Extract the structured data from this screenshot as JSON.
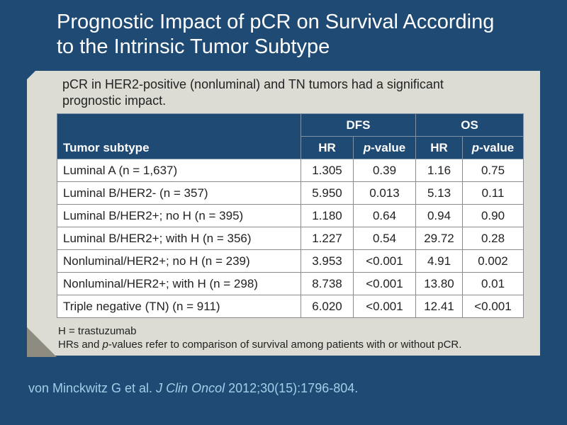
{
  "slide": {
    "title_line1": "Prognostic Impact of pCR on Survival According",
    "title_line2": "to the Intrinsic Tumor Subtype"
  },
  "intro": {
    "line1": "pCR in HER2-positive (nonluminal) and TN tumors had a significant",
    "line2": "prognostic impact."
  },
  "table": {
    "group_headers": [
      "DFS",
      "OS"
    ],
    "column_headers": {
      "subtype": "Tumor subtype",
      "hr": "HR",
      "p_italic": "p",
      "p_rest": "-value"
    },
    "rows": [
      {
        "subtype": "Luminal A (n = 1,637)",
        "dfs_hr": "1.305",
        "dfs_p": "0.39",
        "os_hr": "1.16",
        "os_p": "0.75"
      },
      {
        "subtype": "Luminal B/HER2- (n = 357)",
        "dfs_hr": "5.950",
        "dfs_p": "0.013",
        "os_hr": "5.13",
        "os_p": "0.11"
      },
      {
        "subtype": "Luminal B/HER2+; no H (n = 395)",
        "dfs_hr": "1.180",
        "dfs_p": "0.64",
        "os_hr": "0.94",
        "os_p": "0.90"
      },
      {
        "subtype": "Luminal B/HER2+; with H (n = 356)",
        "dfs_hr": "1.227",
        "dfs_p": "0.54",
        "os_hr": "29.72",
        "os_p": "0.28"
      },
      {
        "subtype": "Nonluminal/HER2+; no H (n = 239)",
        "dfs_hr": "3.953",
        "dfs_p": "<0.001",
        "os_hr": "4.91",
        "os_p": "0.002"
      },
      {
        "subtype": "Nonluminal/HER2+; with H (n = 298)",
        "dfs_hr": "8.738",
        "dfs_p": "<0.001",
        "os_hr": "13.80",
        "os_p": "0.01"
      },
      {
        "subtype": "Triple negative (TN) (n = 911)",
        "dfs_hr": "6.020",
        "dfs_p": "<0.001",
        "os_hr": "12.41",
        "os_p": "<0.001"
      }
    ]
  },
  "footnotes": {
    "line1": "H = trastuzumab",
    "line2_a": "HRs and ",
    "line2_italic": "p",
    "line2_b": "-values refer to comparison of survival among patients with or without pCR."
  },
  "citation": {
    "authors": "von Minckwitz G et al. ",
    "journal": "J Clin Oncol",
    "details": " 2012;30(15):1796-804."
  },
  "colors": {
    "background": "#1f4a74",
    "panel": "#dcdcd5",
    "header_fill": "#1f4a74",
    "citation": "#9fd0e8"
  }
}
